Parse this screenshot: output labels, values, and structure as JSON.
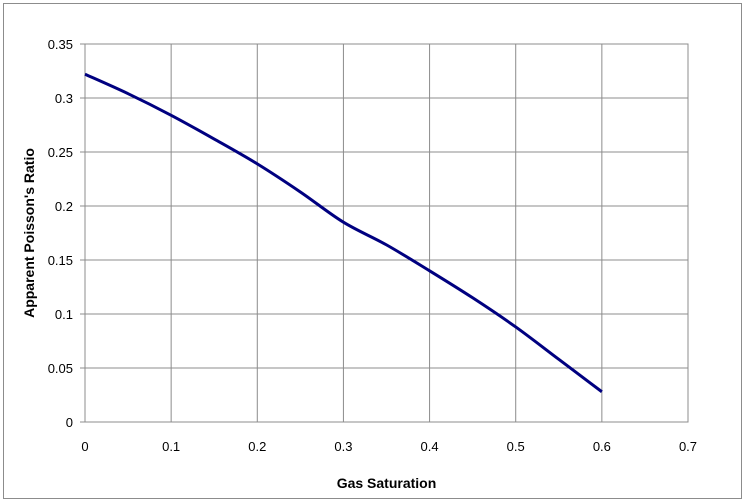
{
  "chart_data": {
    "type": "line",
    "title": "",
    "xlabel": "Gas Saturation",
    "ylabel": "Apparent Poisson's Ratio",
    "xlim": [
      0,
      0.7
    ],
    "ylim": [
      0,
      0.35
    ],
    "x_ticks": [
      "0",
      "0.1",
      "0.2",
      "0.3",
      "0.4",
      "0.5",
      "0.6",
      "0.7"
    ],
    "y_ticks": [
      "0",
      "0.05",
      "0.1",
      "0.15",
      "0.2",
      "0.25",
      "0.3",
      "0.35"
    ],
    "grid": true,
    "legend": "none",
    "line_color": "#000080",
    "series": [
      {
        "x": [
          0,
          0.05,
          0.1,
          0.15,
          0.2,
          0.25,
          0.3,
          0.35,
          0.4,
          0.45,
          0.5,
          0.55,
          0.6
        ],
        "y": [
          0.322,
          0.304,
          0.284,
          0.262,
          0.239,
          0.213,
          0.185,
          0.164,
          0.14,
          0.115,
          0.088,
          0.058,
          0.028
        ]
      }
    ]
  }
}
